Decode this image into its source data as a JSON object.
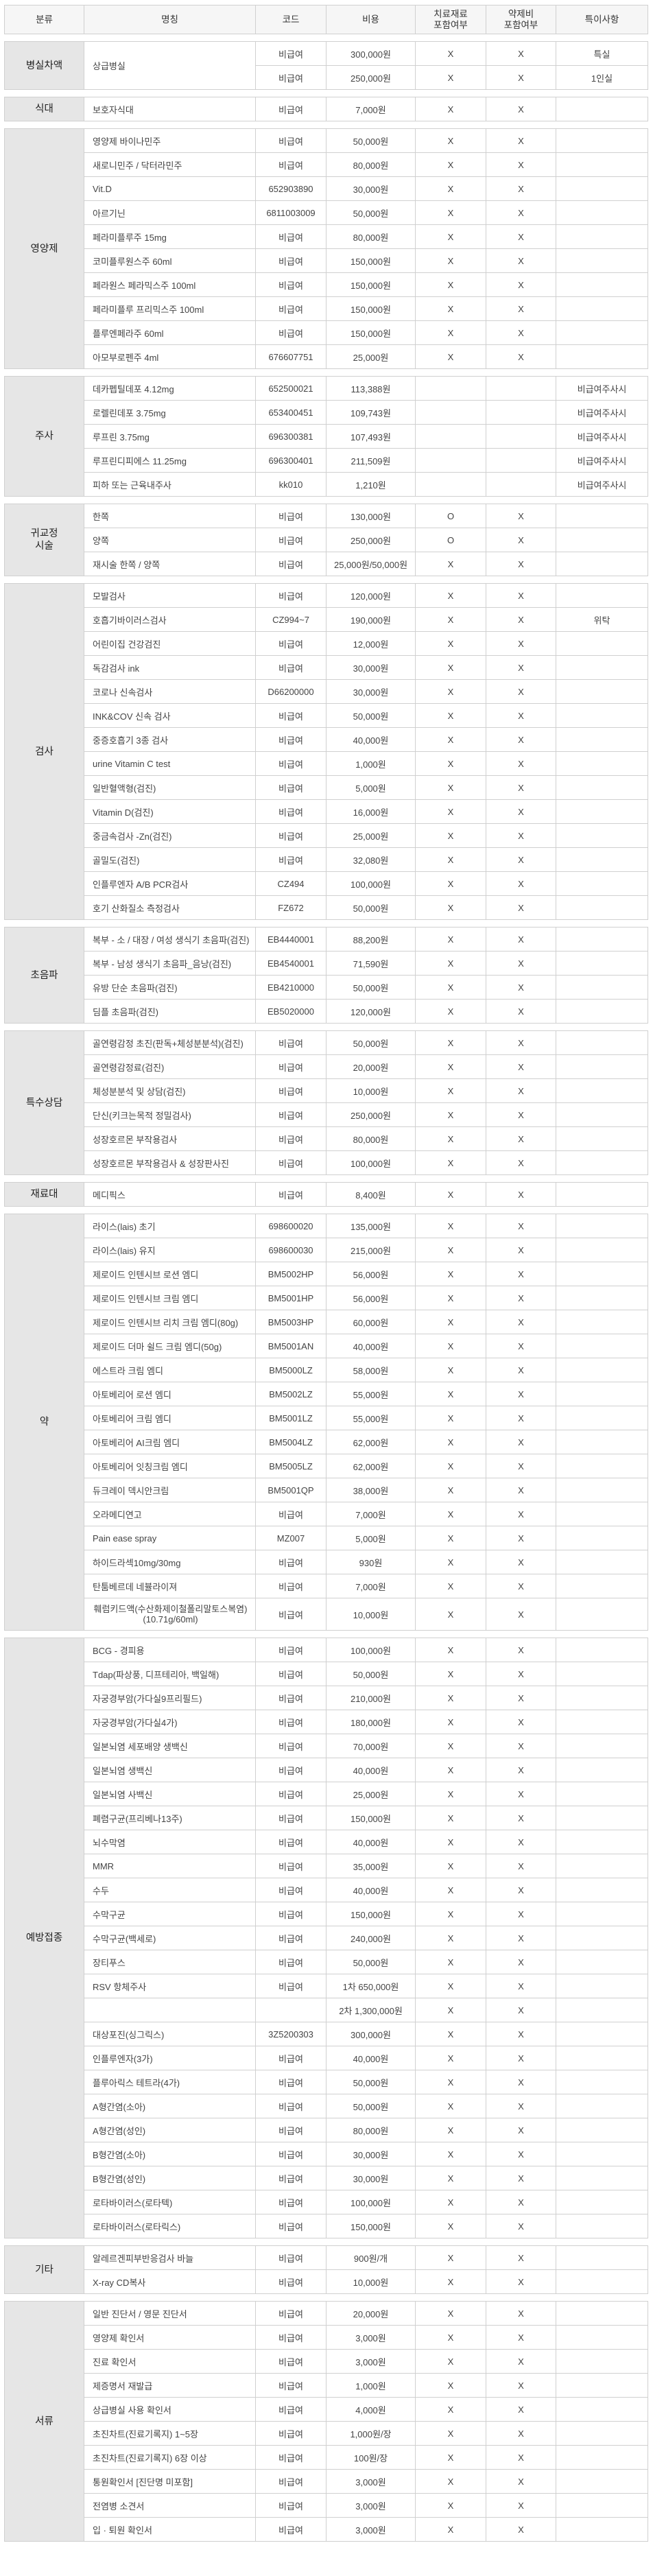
{
  "header": [
    "분류",
    "명칭",
    "코드",
    "비용",
    "치료재료\n포함여부",
    "약제비\n포함여부",
    "특이사항"
  ],
  "sections": [
    {
      "category": "병실차액",
      "rows": [
        [
          "상급병실",
          "비급여",
          "300,000원",
          "X",
          "X",
          "특실"
        ],
        [
          "",
          "비급여",
          "250,000원",
          "X",
          "X",
          "1인실"
        ]
      ]
    },
    {
      "category": "식대",
      "rows": [
        [
          "보호자식대",
          "비급여",
          "7,000원",
          "X",
          "X",
          ""
        ]
      ]
    },
    {
      "category": "영양제",
      "rows": [
        [
          "영양제 바이나민주",
          "비급여",
          "50,000원",
          "X",
          "X",
          ""
        ],
        [
          "새로니민주 / 닥터라민주",
          "비급여",
          "80,000원",
          "X",
          "X",
          ""
        ],
        [
          "Vit.D",
          "652903890",
          "30,000원",
          "X",
          "X",
          ""
        ],
        [
          "아르기닌",
          "6811003009",
          "50,000원",
          "X",
          "X",
          ""
        ],
        [
          "페라미플루주 15mg",
          "비급여",
          "80,000원",
          "X",
          "X",
          ""
        ],
        [
          "코미플루원스주 60ml",
          "비급여",
          "150,000원",
          "X",
          "X",
          ""
        ],
        [
          "페라원스 페라믹스주 100ml",
          "비급여",
          "150,000원",
          "X",
          "X",
          ""
        ],
        [
          "페라미플루 프리믹스주 100ml",
          "비급여",
          "150,000원",
          "X",
          "X",
          ""
        ],
        [
          "플루엔페라주 60ml",
          "비급여",
          "150,000원",
          "X",
          "X",
          ""
        ],
        [
          "아모부로펜주 4ml",
          "676607751",
          "25,000원",
          "X",
          "X",
          ""
        ]
      ]
    },
    {
      "category": "주사",
      "rows": [
        [
          "데카펩틸데포 4.12mg",
          "652500021",
          "113,388원",
          "",
          "",
          "비급여주사시"
        ],
        [
          "로렐린데포 3.75mg",
          "653400451",
          "109,743원",
          "",
          "",
          "비급여주사시"
        ],
        [
          "루프린 3.75mg",
          "696300381",
          "107,493원",
          "",
          "",
          "비급여주사시"
        ],
        [
          "루프린디피에스 11.25mg",
          "696300401",
          "211,509원",
          "",
          "",
          "비급여주사시"
        ],
        [
          "피하 또는 근육내주사",
          "kk010",
          "1,210원",
          "",
          "",
          "비급여주사시"
        ]
      ]
    },
    {
      "category": "귀교정\n시술",
      "rows": [
        [
          "한쪽",
          "비급여",
          "130,000원",
          "O",
          "X",
          ""
        ],
        [
          "양쪽",
          "비급여",
          "250,000원",
          "O",
          "X",
          ""
        ],
        [
          "재시술 한쪽 / 양쪽",
          "비급여",
          "25,000원/50,000원",
          "X",
          "X",
          ""
        ]
      ]
    },
    {
      "category": "검사",
      "rows": [
        [
          "모발검사",
          "비급여",
          "120,000원",
          "X",
          "X",
          ""
        ],
        [
          "호흡기바이러스검사",
          "CZ994~7",
          "190,000원",
          "X",
          "X",
          "위탁"
        ],
        [
          "어린이집 건강검진",
          "비급여",
          "12,000원",
          "X",
          "X",
          ""
        ],
        [
          "독감검사 ink",
          "비급여",
          "30,000원",
          "X",
          "X",
          ""
        ],
        [
          "코로나 신속검사",
          "D66200000",
          "30,000원",
          "X",
          "X",
          ""
        ],
        [
          "INK&COV 신속 검사",
          "비급여",
          "50,000원",
          "X",
          "X",
          ""
        ],
        [
          "중증호흡기 3종 검사",
          "비급여",
          "40,000원",
          "X",
          "X",
          ""
        ],
        [
          "urine Vitamin C test",
          "비급여",
          "1,000원",
          "X",
          "X",
          ""
        ],
        [
          "일반혈액형(검진)",
          "비급여",
          "5,000원",
          "X",
          "X",
          ""
        ],
        [
          "Vitamin D(검진)",
          "비급여",
          "16,000원",
          "X",
          "X",
          ""
        ],
        [
          "중금속검사 -Zn(검진)",
          "비급여",
          "25,000원",
          "X",
          "X",
          ""
        ],
        [
          "골밀도(검진)",
          "비급여",
          "32,080원",
          "X",
          "X",
          ""
        ],
        [
          "인플루엔자 A/B PCR검사",
          "CZ494",
          "100,000원",
          "X",
          "X",
          ""
        ],
        [
          "호기 산화질소 측정검사",
          "FZ672",
          "50,000원",
          "X",
          "X",
          ""
        ]
      ]
    },
    {
      "category": "초음파",
      "rows": [
        [
          "복부 - 소 / 대장 / 여성 생식기 초음파(검진)",
          "EB4440001",
          "88,200원",
          "X",
          "X",
          ""
        ],
        [
          "복부 - 남성 생식기 초음파_음낭(검진)",
          "EB4540001",
          "71,590원",
          "X",
          "X",
          ""
        ],
        [
          "유방 단순 초음파(검진)",
          "EB4210000",
          "50,000원",
          "X",
          "X",
          ""
        ],
        [
          "딤플 초음파(검진)",
          "EB5020000",
          "120,000원",
          "X",
          "X",
          ""
        ]
      ]
    },
    {
      "category": "특수상담",
      "rows": [
        [
          "골연령감정 초진(판독+체성분분석)(검진)",
          "비급여",
          "50,000원",
          "X",
          "X",
          ""
        ],
        [
          "골연령감정료(검진)",
          "비급여",
          "20,000원",
          "X",
          "X",
          ""
        ],
        [
          "체성분분석 및 상담(검진)",
          "비급여",
          "10,000원",
          "X",
          "X",
          ""
        ],
        [
          "단신(키크는목적 정밀검사)",
          "비급여",
          "250,000원",
          "X",
          "X",
          ""
        ],
        [
          "성장호르몬 부작용검사",
          "비급여",
          "80,000원",
          "X",
          "X",
          ""
        ],
        [
          "성장호르몬 부작용검사 & 성장판사진",
          "비급여",
          "100,000원",
          "X",
          "X",
          ""
        ]
      ]
    },
    {
      "category": "재료대",
      "rows": [
        [
          "메디픽스",
          "비급여",
          "8,400원",
          "X",
          "X",
          ""
        ]
      ]
    },
    {
      "category": "약",
      "rows": [
        [
          "라이스(lais) 초기",
          "698600020",
          "135,000원",
          "X",
          "X",
          ""
        ],
        [
          "라이스(lais) 유지",
          "698600030",
          "215,000원",
          "X",
          "X",
          ""
        ],
        [
          "제로이드 인텐시브 로션 엠디",
          "BM5002HP",
          "56,000원",
          "X",
          "X",
          ""
        ],
        [
          "제로이드 인텐시브 크림 엠디",
          "BM5001HP",
          "56,000원",
          "X",
          "X",
          ""
        ],
        [
          "제로이드 인텐시브 리치 크림 엠디(80g)",
          "BM5003HP",
          "60,000원",
          "X",
          "X",
          ""
        ],
        [
          "제로이드 더마 쉴드 크림 엠디(50g)",
          "BM5001AN",
          "40,000원",
          "X",
          "X",
          ""
        ],
        [
          "에스트라 크림 엠디",
          "BM5000LZ",
          "58,000원",
          "X",
          "X",
          ""
        ],
        [
          "아토베리어 로션 엠디",
          "BM5002LZ",
          "55,000원",
          "X",
          "X",
          ""
        ],
        [
          "아토베리어 크림 엠디",
          "BM5001LZ",
          "55,000원",
          "X",
          "X",
          ""
        ],
        [
          "아토베리어 AI크림 엠디",
          "BM5004LZ",
          "62,000원",
          "X",
          "X",
          ""
        ],
        [
          "아토베리어 잇칭크림 엠디",
          "BM5005LZ",
          "62,000원",
          "X",
          "X",
          ""
        ],
        [
          "듀크레이 덱시안크림",
          "BM5001QP",
          "38,000원",
          "X",
          "X",
          ""
        ],
        [
          "오라메디연고",
          "비급여",
          "7,000원",
          "X",
          "X",
          ""
        ],
        [
          "Pain ease spray",
          "MZ007",
          "5,000원",
          "X",
          "X",
          ""
        ],
        [
          "하이드라섹10mg/30mg",
          "비급여",
          "930원",
          "X",
          "X",
          ""
        ],
        [
          "탄툼베르데 네뷸라이져",
          "비급여",
          "7,000원",
          "X",
          "X",
          ""
        ],
        [
          "훼럼키드액(수산화제이철폴리말토스복염)\n(10.71g/60ml)",
          "비급여",
          "10,000원",
          "X",
          "X",
          ""
        ]
      ]
    },
    {
      "category": "예방접종",
      "rows": [
        [
          "BCG - 경피용",
          "비급여",
          "100,000원",
          "X",
          "X",
          ""
        ],
        [
          "Tdap(파상풍, 디프테리아, 백일해)",
          "비급여",
          "50,000원",
          "X",
          "X",
          ""
        ],
        [
          "자궁경부암(가다실9프리필드)",
          "비급여",
          "210,000원",
          "X",
          "X",
          ""
        ],
        [
          "자궁경부암(가다실4가)",
          "비급여",
          "180,000원",
          "X",
          "X",
          ""
        ],
        [
          "일본뇌염 세포배양 생백신",
          "비급여",
          "70,000원",
          "X",
          "X",
          ""
        ],
        [
          "일본뇌염 생백신",
          "비급여",
          "40,000원",
          "X",
          "X",
          ""
        ],
        [
          "일본뇌염 사백신",
          "비급여",
          "25,000원",
          "X",
          "X",
          ""
        ],
        [
          "폐렴구균(프리베나13주)",
          "비급여",
          "150,000원",
          "X",
          "X",
          ""
        ],
        [
          "뇌수막염",
          "비급여",
          "40,000원",
          "X",
          "X",
          ""
        ],
        [
          "MMR",
          "비급여",
          "35,000원",
          "X",
          "X",
          ""
        ],
        [
          "수두",
          "비급여",
          "40,000원",
          "X",
          "X",
          ""
        ],
        [
          "수막구균",
          "비급여",
          "150,000원",
          "X",
          "X",
          ""
        ],
        [
          "수막구균(백세로)",
          "비급여",
          "240,000원",
          "X",
          "X",
          ""
        ],
        [
          "장티푸스",
          "비급여",
          "50,000원",
          "X",
          "X",
          ""
        ],
        [
          "RSV 항체주사",
          "비급여",
          "1차 650,000원",
          "X",
          "X",
          ""
        ],
        [
          "",
          "",
          "2차 1,300,000원",
          "X",
          "X",
          ""
        ],
        [
          "대상포진(싱그릭스)",
          "3Z5200303",
          "300,000원",
          "X",
          "X",
          ""
        ],
        [
          "인플루엔자(3가)",
          "비급여",
          "40,000원",
          "X",
          "X",
          ""
        ],
        [
          "플루아릭스 테트라(4가)",
          "비급여",
          "50,000원",
          "X",
          "X",
          ""
        ],
        [
          "A형간염(소아)",
          "비급여",
          "50,000원",
          "X",
          "X",
          ""
        ],
        [
          "A형간염(성인)",
          "비급여",
          "80,000원",
          "X",
          "X",
          ""
        ],
        [
          "B형간염(소아)",
          "비급여",
          "30,000원",
          "X",
          "X",
          ""
        ],
        [
          "B형간염(성인)",
          "비급여",
          "30,000원",
          "X",
          "X",
          ""
        ],
        [
          "로타바이러스(로타텍)",
          "비급여",
          "100,000원",
          "X",
          "X",
          ""
        ],
        [
          "로타바이러스(로타릭스)",
          "비급여",
          "150,000원",
          "X",
          "X",
          ""
        ]
      ]
    },
    {
      "category": "기타",
      "rows": [
        [
          "알레르겐피부반응검사 바늘",
          "비급여",
          "900원/개",
          "X",
          "X",
          ""
        ],
        [
          "X-ray CD복사",
          "비급여",
          "10,000원",
          "X",
          "X",
          ""
        ]
      ]
    },
    {
      "category": "서류",
      "rows": [
        [
          "일반 진단서 / 영문 진단서",
          "비급여",
          "20,000원",
          "X",
          "X",
          ""
        ],
        [
          "영양제 확인서",
          "비급여",
          "3,000원",
          "X",
          "X",
          ""
        ],
        [
          "진료 확인서",
          "비급여",
          "3,000원",
          "X",
          "X",
          ""
        ],
        [
          "제증명서 재발급",
          "비급여",
          "1,000원",
          "X",
          "X",
          ""
        ],
        [
          "상급병실 사용 확인서",
          "비급여",
          "4,000원",
          "X",
          "X",
          ""
        ],
        [
          "초진차트(진료기록지) 1~5장",
          "비급여",
          "1,000원/장",
          "X",
          "X",
          ""
        ],
        [
          "초진차트(진료기록지) 6장 이상",
          "비급여",
          "100원/장",
          "X",
          "X",
          ""
        ],
        [
          "통원확인서 [진단명 미포함]",
          "비급여",
          "3,000원",
          "X",
          "X",
          ""
        ],
        [
          "전염병 소견서",
          "비급여",
          "3,000원",
          "X",
          "X",
          ""
        ],
        [
          "입 · 퇴원 확인서",
          "비급여",
          "3,000원",
          "X",
          "X",
          ""
        ]
      ]
    }
  ]
}
